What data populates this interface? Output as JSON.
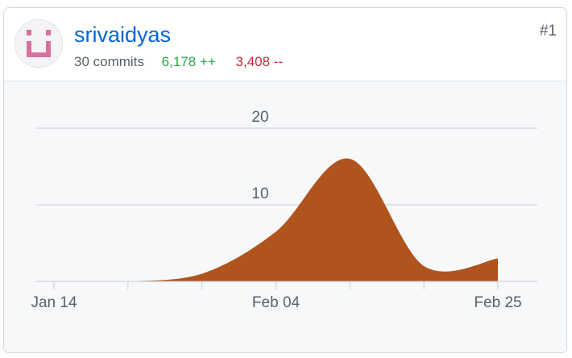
{
  "contributor": {
    "username": "srivaidyas",
    "commits": "30 commits",
    "additions": "6,178 ++",
    "deletions": "3,408 --",
    "rank": "#1",
    "avatar_icon": "identicon-icon",
    "avatar_color": "#d9709f"
  },
  "colors": {
    "area": "#b0541e",
    "link": "#0366d6",
    "additions": "#28a745",
    "deletions": "#cb2431"
  },
  "chart_data": {
    "type": "area",
    "x_axis": {
      "type": "date",
      "ticks": [
        "Jan 14",
        "Feb 04",
        "Feb 25"
      ]
    },
    "y_axis": {
      "ticks": [
        10,
        20
      ],
      "range": [
        0,
        20
      ]
    },
    "grid": true,
    "series": [
      {
        "x": [
          "2024-01-14",
          "2024-01-21",
          "2024-01-28",
          "2024-02-04",
          "2024-02-11",
          "2024-02-18",
          "2024-02-25"
        ],
        "values": [
          0,
          0,
          1,
          6.5,
          16,
          2,
          3
        ]
      }
    ]
  }
}
